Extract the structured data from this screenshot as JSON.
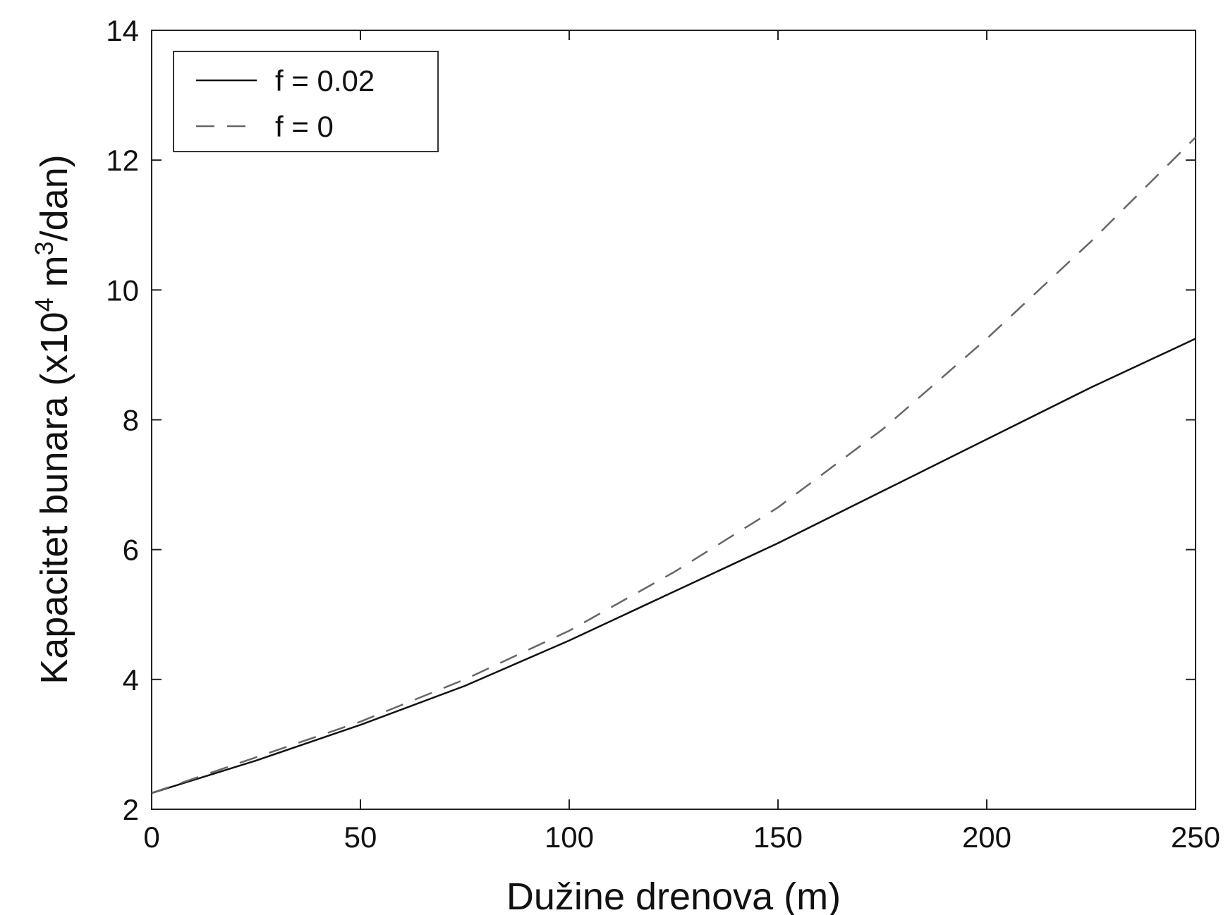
{
  "chart_data": {
    "type": "line",
    "xlabel": "Dužine drenova (m)",
    "ylabel_main": "Kapacitet bunara (x10",
    "ylabel_sup1": "4",
    "ylabel_mid": " m",
    "ylabel_sup2": "3",
    "ylabel_end": "/dan)",
    "xlim": [
      0,
      250
    ],
    "ylim": [
      2,
      14
    ],
    "xticks": [
      0,
      50,
      100,
      150,
      200,
      250
    ],
    "yticks": [
      2,
      4,
      6,
      8,
      10,
      12,
      14
    ],
    "xtick_labels": [
      "0",
      "50",
      "100",
      "150",
      "200",
      "250"
    ],
    "ytick_labels": [
      "2",
      "4",
      "6",
      "8",
      "10",
      "12",
      "14"
    ],
    "grid": false,
    "legend_position": "top-left",
    "series": [
      {
        "name": "f = 0.02",
        "style": "solid",
        "color": "#111111",
        "x": [
          0,
          25,
          50,
          75,
          100,
          125,
          150,
          175,
          200,
          225,
          250
        ],
        "y": [
          2.25,
          2.75,
          3.3,
          3.9,
          4.6,
          5.35,
          6.1,
          6.9,
          7.7,
          8.5,
          9.25
        ]
      },
      {
        "name": "f = 0",
        "style": "dashed",
        "color": "#666666",
        "x": [
          0,
          25,
          50,
          75,
          100,
          125,
          150,
          175,
          200,
          225,
          250
        ],
        "y": [
          2.25,
          2.8,
          3.35,
          4.0,
          4.75,
          5.65,
          6.65,
          7.85,
          9.25,
          10.75,
          12.35
        ]
      }
    ]
  }
}
